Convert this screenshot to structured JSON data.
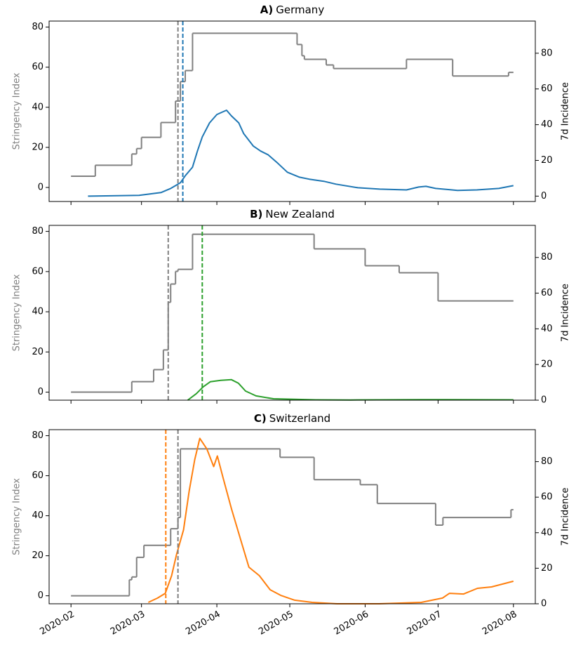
{
  "chart_data": [
    {
      "type": "line",
      "label": "A)",
      "title": "Germany",
      "ylabel": "Stringency Index",
      "y2label": "7d Incidence",
      "xlim": [
        -9,
        191
      ],
      "ylim": [
        -7,
        83
      ],
      "yticks": [
        0,
        20,
        40,
        60,
        80
      ],
      "y2lim": [
        -3,
        98
      ],
      "y2ticks": [
        0,
        20,
        40,
        60,
        80
      ],
      "series": [
        {
          "color": "#808080",
          "axis": "y",
          "step": true,
          "x": [
            0,
            10,
            25,
            27,
            29,
            37,
            43,
            45,
            47,
            50,
            91,
            93,
            95,
            96,
            105,
            108,
            138,
            157,
            180,
            182
          ],
          "values": [
            5.6,
            11.1,
            16.7,
            19.4,
            25,
            32.4,
            43.1,
            52.8,
            58.3,
            76.9,
            76.9,
            71.3,
            65.7,
            63.9,
            61.1,
            59.3,
            63.9,
            55.6,
            57.4,
            57.4
          ]
        },
        {
          "color": "#1f77b4",
          "axis": "y2",
          "step": false,
          "x": [
            7,
            28,
            37,
            41,
            45,
            47,
            50,
            52,
            54,
            57,
            58,
            60,
            62,
            64,
            66,
            69,
            71,
            75,
            78,
            81,
            85,
            89,
            94,
            98,
            104,
            109,
            118,
            127,
            138,
            143,
            146,
            150,
            159,
            167,
            176,
            182
          ],
          "values": [
            0,
            0.4,
            2,
            4.3,
            7.5,
            11.4,
            16.2,
            25.2,
            33.1,
            41,
            42.6,
            45.7,
            46.9,
            48.1,
            44.9,
            41,
            35.1,
            28,
            25.2,
            23.2,
            18.5,
            13.4,
            10.6,
            9.5,
            8.3,
            6.7,
            4.7,
            3.9,
            3.5,
            5.1,
            5.5,
            4.3,
            3.2,
            3.5,
            4.3,
            5.9
          ]
        }
      ],
      "vlines": [
        {
          "x": 44,
          "color": "#808080"
        },
        {
          "x": 46,
          "color": "#1f77b4"
        }
      ]
    },
    {
      "type": "line",
      "label": "B)",
      "title": "New Zealand",
      "ylabel": "Stringency Index",
      "y2label": "7d Incidence",
      "xlim": [
        -9,
        191
      ],
      "ylim": [
        -4,
        83
      ],
      "yticks": [
        0,
        20,
        40,
        60,
        80
      ],
      "y2lim": [
        0,
        98
      ],
      "y2ticks": [
        0,
        20,
        40,
        60,
        80
      ],
      "series": [
        {
          "color": "#808080",
          "axis": "y",
          "step": true,
          "x": [
            0,
            25,
            34,
            38,
            40,
            41,
            43,
            44,
            50,
            100,
            121,
            135,
            151,
            182
          ],
          "values": [
            0,
            5.2,
            11.2,
            21,
            44.7,
            53.8,
            60.1,
            61.1,
            78.6,
            71.3,
            62.9,
            59.4,
            45.4,
            45.4
          ]
        },
        {
          "color": "#2ca02c",
          "axis": "y2",
          "step": false,
          "x": [
            48,
            51.5,
            54.4,
            57.3,
            61.6,
            66,
            68.9,
            71.8,
            76.1,
            83.3,
            100.7,
            115,
            144,
            182
          ],
          "values": [
            0,
            3.6,
            7.5,
            10.3,
            11.1,
            11.5,
            9.5,
            5.1,
            2.4,
            0.8,
            0.2,
            0.1,
            0.3,
            0.2
          ]
        }
      ],
      "vlines": [
        {
          "x": 40,
          "color": "#808080"
        },
        {
          "x": 54,
          "color": "#2ca02c"
        }
      ]
    },
    {
      "type": "line",
      "label": "C)",
      "title": "Switzerland",
      "ylabel": "Stringency Index",
      "y2label": "7d Incidence",
      "xlim": [
        -9,
        191
      ],
      "ylim": [
        -4,
        83
      ],
      "yticks": [
        0,
        20,
        40,
        60,
        80
      ],
      "y2lim": [
        0,
        98
      ],
      "y2ticks": [
        0,
        20,
        40,
        60,
        80
      ],
      "xticks": [
        {
          "value": 0,
          "label": "2020-02"
        },
        {
          "value": 29,
          "label": "2020-03"
        },
        {
          "value": 60,
          "label": "2020-04"
        },
        {
          "value": 90,
          "label": "2020-05"
        },
        {
          "value": 121,
          "label": "2020-06"
        },
        {
          "value": 151,
          "label": "2020-07"
        },
        {
          "value": 182,
          "label": "2020-08"
        }
      ],
      "series": [
        {
          "color": "#808080",
          "axis": "y",
          "step": true,
          "x": [
            0,
            24,
            25,
            27,
            30,
            41,
            44,
            45,
            86,
            100,
            119,
            126,
            150,
            153,
            181,
            182
          ],
          "values": [
            0,
            8,
            9.4,
            19.2,
            25.2,
            33.5,
            39.1,
            73.4,
            69.2,
            58,
            55.5,
            46.1,
            35.3,
            39.1,
            43,
            43
          ]
        },
        {
          "color": "#ff7f0e",
          "axis": "y2",
          "step": false,
          "x": [
            31.8,
            35.6,
            38.8,
            41.4,
            43.4,
            46.3,
            48.6,
            50.9,
            53,
            55.9,
            58.7,
            60.2,
            62.5,
            66,
            70.3,
            73.2,
            77.5,
            81.9,
            86.2,
            92,
            99.2,
            109.4,
            126.7,
            144.1,
            152.8,
            155.7,
            161.5,
            167.2,
            173,
            182
          ],
          "values": [
            0.8,
            3.2,
            5.9,
            15.8,
            27.7,
            41.6,
            63.4,
            81.2,
            93.1,
            87.1,
            77.2,
            83.2,
            71.3,
            53.5,
            33.7,
            20.6,
            15.8,
            7.9,
            4.8,
            2,
            0.8,
            0,
            0,
            0.8,
            3.2,
            5.9,
            5.5,
            8.7,
            9.5,
            12.7
          ]
        }
      ],
      "vlines": [
        {
          "x": 39,
          "color": "#ff7f0e"
        },
        {
          "x": 44,
          "color": "#808080"
        }
      ]
    }
  ]
}
